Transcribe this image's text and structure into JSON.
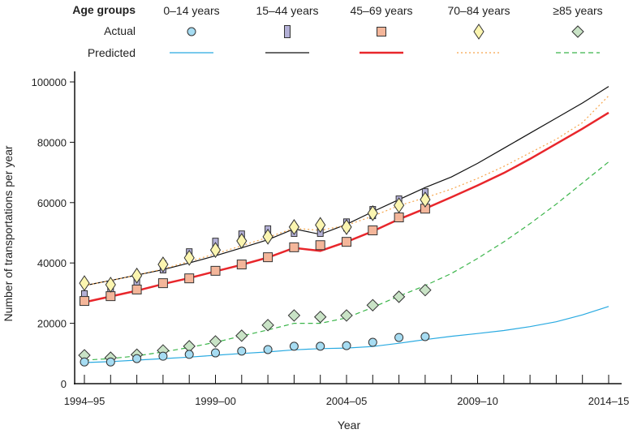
{
  "chart_data": {
    "type": "line",
    "xlabel": "Year",
    "ylabel": "Number of transportations per year",
    "ylim": [
      0,
      100000
    ],
    "yticks": [
      0,
      20000,
      40000,
      60000,
      80000,
      100000
    ],
    "x": [
      "1994–95",
      "1995–96",
      "1996–97",
      "1997–98",
      "1998–99",
      "1999–00",
      "2000–01",
      "2001–02",
      "2002–03",
      "2003–04",
      "2004–05",
      "2005–06",
      "2006–07",
      "2007–08",
      "2008–09",
      "2009–10",
      "2010–11",
      "2011–12",
      "2012–13",
      "2013–14",
      "2014–15"
    ],
    "xtick_labels": [
      "1994–95",
      "1999–00",
      "2004–05",
      "2009–10",
      "2014–15"
    ],
    "legend": {
      "title": "Age groups",
      "actual_label": "Actual",
      "predicted_label": "Predicted",
      "placement": "top"
    },
    "series": [
      {
        "name": "0–14 years",
        "marker": "circle",
        "fill": "#a6dcf2",
        "line_color": "#29aae1",
        "line_style": "solid",
        "actual": [
          7200,
          7200,
          8300,
          9100,
          9700,
          10200,
          10800,
          11300,
          12400,
          12400,
          12600,
          13700,
          15300,
          15600
        ],
        "predicted": [
          7000,
          7300,
          7800,
          8300,
          8800,
          9400,
          10000,
          10500,
          11200,
          11600,
          11800,
          12300,
          13400,
          14600,
          15700,
          16600,
          17600,
          18900,
          20500,
          22800,
          25600
        ]
      },
      {
        "name": "15–44 years",
        "marker": "bar",
        "fill": "#b3b0d6",
        "line_color": "#111111",
        "line_style": "solid",
        "actual": [
          28800,
          32000,
          34100,
          38700,
          42700,
          46200,
          48600,
          50300,
          50800,
          50800,
          52600,
          56700,
          60200,
          62600
        ],
        "predicted": [
          32500,
          34200,
          36000,
          37800,
          40000,
          42400,
          45000,
          47700,
          51300,
          49500,
          52800,
          57000,
          61000,
          65000,
          68500,
          73000,
          78000,
          83000,
          88000,
          93000,
          98500
        ]
      },
      {
        "name": "45–69 years",
        "marker": "square",
        "fill": "#f4b69a",
        "line_color": "#e8262b",
        "line_style": "solid-thick",
        "actual": [
          27400,
          29000,
          31200,
          33300,
          34900,
          37400,
          39500,
          41900,
          45200,
          45900,
          47000,
          50800,
          55100,
          58000
        ],
        "predicted": [
          27000,
          28900,
          30800,
          33000,
          35000,
          37200,
          39400,
          41800,
          45000,
          44000,
          47000,
          50500,
          54500,
          58000,
          61800,
          65700,
          69800,
          74500,
          79500,
          84500,
          89800
        ]
      },
      {
        "name": "70–84 years",
        "marker": "diamond-tall",
        "fill": "#fbf5b0",
        "line_color": "#f7a54a",
        "line_style": "dotted",
        "actual": [
          33300,
          32800,
          35800,
          39500,
          41700,
          44300,
          47300,
          48700,
          51900,
          52600,
          51900,
          56500,
          59100,
          61000
        ],
        "predicted": [
          32500,
          34200,
          36000,
          38000,
          40500,
          43000,
          45700,
          48500,
          51500,
          50800,
          52500,
          55500,
          59000,
          61600,
          64500,
          68000,
          72000,
          76500,
          81000,
          86500,
          95400
        ]
      },
      {
        "name": "≥85 years",
        "marker": "diamond",
        "fill": "#c9e3c6",
        "line_color": "#3bb54a",
        "line_style": "dashed",
        "actual": [
          9400,
          8600,
          9600,
          11000,
          12400,
          14000,
          15900,
          19400,
          22600,
          22100,
          22600,
          26000,
          28800,
          31000
        ],
        "predicted": [
          7800,
          8300,
          9200,
          10500,
          12000,
          13700,
          15800,
          17800,
          20000,
          20000,
          21800,
          25300,
          29000,
          32500,
          36500,
          41500,
          47000,
          53000,
          59500,
          66500,
          73500
        ]
      }
    ]
  }
}
